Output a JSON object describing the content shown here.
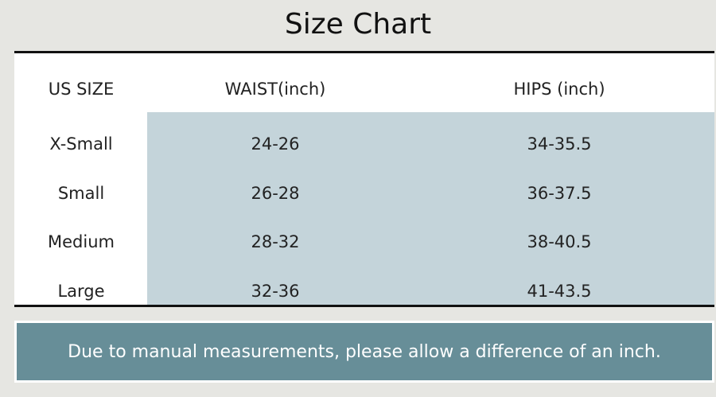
{
  "header": {
    "title": "Size Chart"
  },
  "table": {
    "columns": [
      "US SIZE",
      "WAIST(inch)",
      "HIPS (inch)"
    ],
    "rows": [
      [
        "X-Small",
        "24-26",
        "34-35.5"
      ],
      [
        "Small",
        "26-28",
        "36-37.5"
      ],
      [
        "Medium",
        "28-32",
        "38-40.5"
      ],
      [
        "Large",
        "32-36",
        "41-43.5"
      ]
    ]
  },
  "note": "Due to manual measurements, please allow a difference of an inch."
}
